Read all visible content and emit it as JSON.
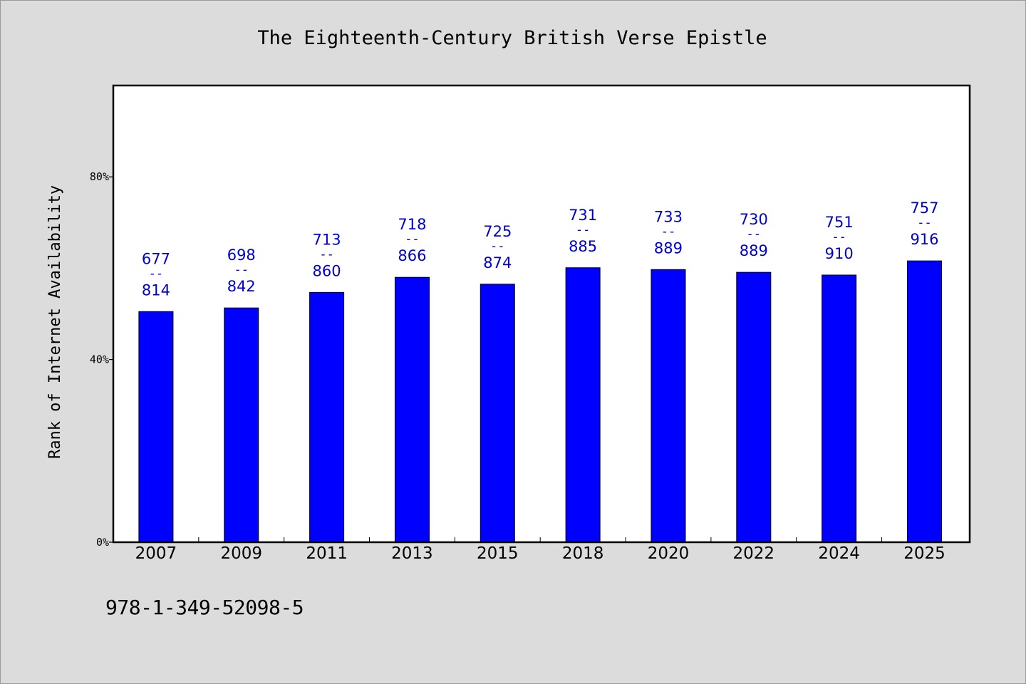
{
  "chart_data": {
    "type": "bar",
    "title": "The Eighteenth-Century British Verse Epistle",
    "ylabel": "Rank of Internet Availability",
    "xlabel": "",
    "ylim": [
      0,
      100
    ],
    "yticks": [
      0,
      40,
      80
    ],
    "ytick_labels": [
      "0%",
      "40%",
      "80%"
    ],
    "grid": false,
    "categories": [
      "2007",
      "2009",
      "2011",
      "2013",
      "2015",
      "2018",
      "2020",
      "2022",
      "2024",
      "2025"
    ],
    "values": [
      50.5,
      51.3,
      54.7,
      58.0,
      56.5,
      60.1,
      59.7,
      59.1,
      58.5,
      61.6
    ],
    "annotations": [
      {
        "top": "677",
        "sep": "--",
        "bottom": "814"
      },
      {
        "top": "698",
        "sep": "--",
        "bottom": "842"
      },
      {
        "top": "713",
        "sep": "--",
        "bottom": "860"
      },
      {
        "top": "718",
        "sep": "--",
        "bottom": "866"
      },
      {
        "top": "725",
        "sep": "--",
        "bottom": "874"
      },
      {
        "top": "731",
        "sep": "--",
        "bottom": "885"
      },
      {
        "top": "733",
        "sep": "--",
        "bottom": "889"
      },
      {
        "top": "730",
        "sep": "--",
        "bottom": "889"
      },
      {
        "top": "751",
        "sep": "--",
        "bottom": "910"
      },
      {
        "top": "757",
        "sep": "--",
        "bottom": "916"
      }
    ],
    "colors": {
      "bar": "#0000ff",
      "label": "#0000cc",
      "background": "#dcdcdc",
      "plot_background": "#ffffff"
    }
  },
  "footnote": "978-1-349-52098-5"
}
